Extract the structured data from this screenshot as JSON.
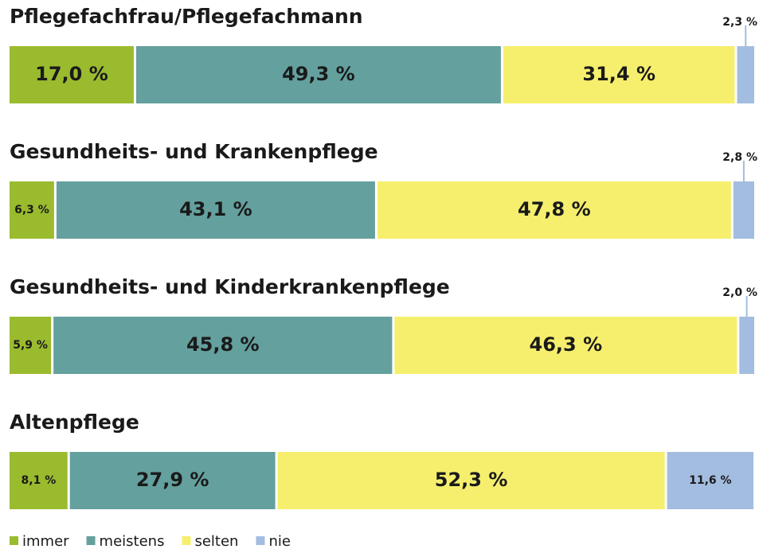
{
  "chart_data": {
    "type": "bar",
    "orientation": "horizontal",
    "stacked": true,
    "categories": [
      "Pflegefachfrau/Pflegefachmann",
      "Gesundheits- und Krankenpflege",
      "Gesundheits- und Kinderkrankenpflege",
      "Altenpflege"
    ],
    "xlim": [
      0,
      100
    ],
    "legend": "bottom",
    "series": [
      {
        "name": "immer",
        "color": "#9bbb2f",
        "values": [
          17.0,
          6.3,
          5.9,
          8.1
        ],
        "value_labels": [
          "17,0 %",
          "6,3 %",
          "5,9 %",
          "8,1 %"
        ]
      },
      {
        "name": "meistens",
        "color": "#64a09e",
        "values": [
          49.3,
          43.1,
          45.8,
          27.9
        ],
        "value_labels": [
          "49,3 %",
          "43,1 %",
          "45,8 %",
          "27,9 %"
        ]
      },
      {
        "name": "selten",
        "color": "#f6ef6d",
        "values": [
          31.4,
          47.8,
          46.3,
          52.3
        ],
        "value_labels": [
          "31,4 %",
          "47,8 %",
          "46,3 %",
          "52,3 %"
        ]
      },
      {
        "name": "nie",
        "color": "#a3bde0",
        "values": [
          2.3,
          2.8,
          2.0,
          11.6
        ],
        "value_labels": [
          "2,3 %",
          "2,8 %",
          "2,0 %",
          "11,6 %"
        ]
      }
    ]
  }
}
